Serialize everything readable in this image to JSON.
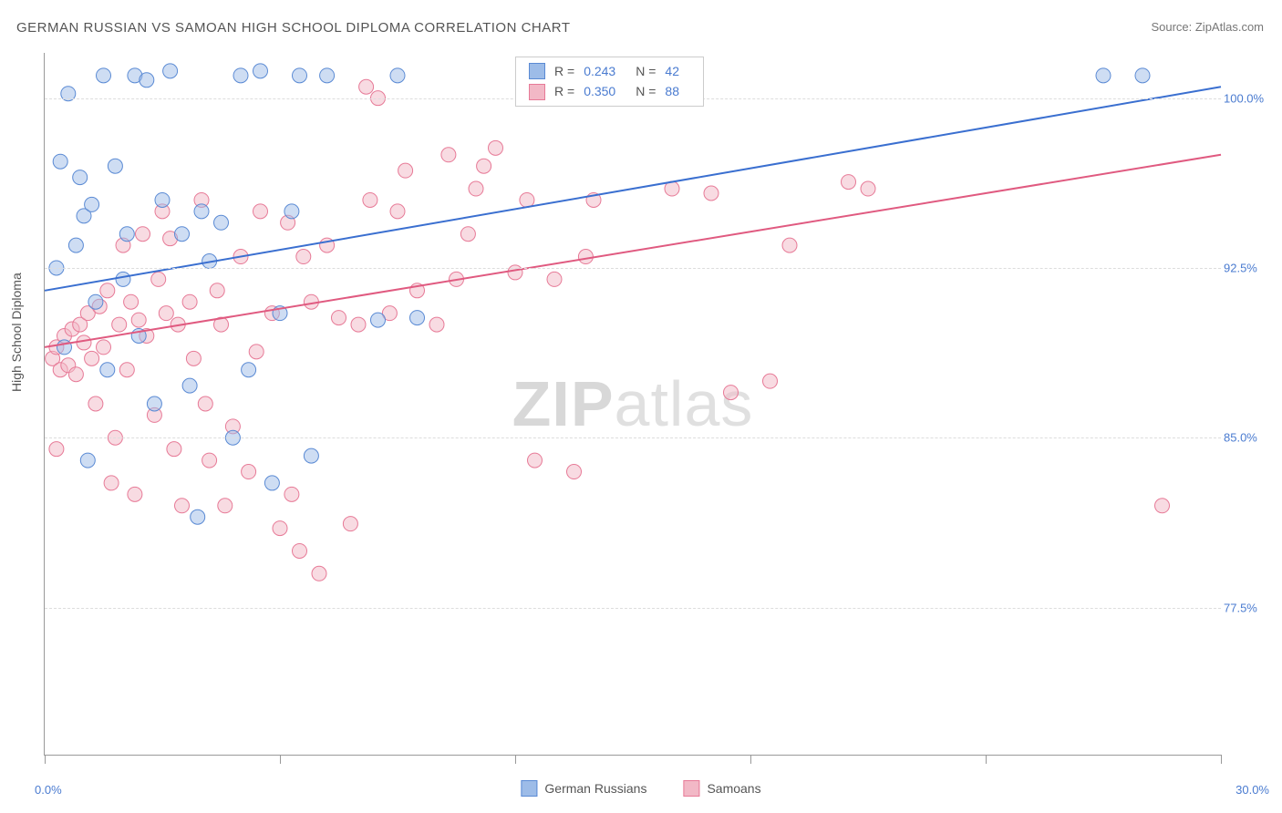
{
  "title": "GERMAN RUSSIAN VS SAMOAN HIGH SCHOOL DIPLOMA CORRELATION CHART",
  "source": "Source: ZipAtlas.com",
  "ylabel": "High School Diploma",
  "watermark_bold": "ZIP",
  "watermark_light": "atlas",
  "chart": {
    "type": "scatter",
    "background_color": "#ffffff",
    "grid_color": "#dddddd",
    "axis_color": "#999999",
    "text_color": "#555555",
    "value_color": "#4a7bd0",
    "xlim": [
      0.0,
      30.0
    ],
    "ylim": [
      71.0,
      102.0
    ],
    "yticks": [
      77.5,
      85.0,
      92.5,
      100.0
    ],
    "ytick_labels": [
      "77.5%",
      "85.0%",
      "92.5%",
      "100.0%"
    ],
    "xaxis_left_label": "0.0%",
    "xaxis_right_label": "30.0%",
    "xtick_positions": [
      0,
      6,
      12,
      18,
      24,
      30
    ],
    "marker_radius": 8,
    "marker_opacity": 0.5,
    "line_width": 2,
    "series": [
      {
        "name": "German Russians",
        "label": "German Russians",
        "fill_color": "#9dbce8",
        "stroke_color": "#5a8ad4",
        "line_color": "#3a6fd0",
        "R": "0.243",
        "N": "42",
        "trend": {
          "x1": 0.0,
          "y1": 91.5,
          "x2": 30.0,
          "y2": 100.5
        },
        "points": [
          [
            0.3,
            92.5
          ],
          [
            0.4,
            97.2
          ],
          [
            0.5,
            89.0
          ],
          [
            0.6,
            100.2
          ],
          [
            0.8,
            93.5
          ],
          [
            1.0,
            94.8
          ],
          [
            1.2,
            95.3
          ],
          [
            1.3,
            91.0
          ],
          [
            1.5,
            101.0
          ],
          [
            1.6,
            88.0
          ],
          [
            1.8,
            97.0
          ],
          [
            2.0,
            92.0
          ],
          [
            2.1,
            94.0
          ],
          [
            2.3,
            101.0
          ],
          [
            2.4,
            89.5
          ],
          [
            2.6,
            100.8
          ],
          [
            2.8,
            86.5
          ],
          [
            3.0,
            95.5
          ],
          [
            3.2,
            101.2
          ],
          [
            3.5,
            94.0
          ],
          [
            3.7,
            87.3
          ],
          [
            4.0,
            95.0
          ],
          [
            4.2,
            92.8
          ],
          [
            4.5,
            94.5
          ],
          [
            4.8,
            85.0
          ],
          [
            5.0,
            101.0
          ],
          [
            5.2,
            88.0
          ],
          [
            5.5,
            101.2
          ],
          [
            5.8,
            83.0
          ],
          [
            6.0,
            90.5
          ],
          [
            6.3,
            95.0
          ],
          [
            6.5,
            101.0
          ],
          [
            6.8,
            84.2
          ],
          [
            7.2,
            101.0
          ],
          [
            8.5,
            90.2
          ],
          [
            9.0,
            101.0
          ],
          [
            9.5,
            90.3
          ],
          [
            27.0,
            101.0
          ],
          [
            28.0,
            101.0
          ],
          [
            3.9,
            81.5
          ],
          [
            1.1,
            84.0
          ],
          [
            0.9,
            96.5
          ]
        ]
      },
      {
        "name": "Samoans",
        "label": "Samoans",
        "fill_color": "#f2b8c6",
        "stroke_color": "#e77a97",
        "line_color": "#e05a80",
        "R": "0.350",
        "N": "88",
        "trend": {
          "x1": 0.0,
          "y1": 89.0,
          "x2": 30.0,
          "y2": 97.5
        },
        "points": [
          [
            0.2,
            88.5
          ],
          [
            0.3,
            89.0
          ],
          [
            0.4,
            88.0
          ],
          [
            0.5,
            89.5
          ],
          [
            0.6,
            88.2
          ],
          [
            0.7,
            89.8
          ],
          [
            0.8,
            87.8
          ],
          [
            0.9,
            90.0
          ],
          [
            1.0,
            89.2
          ],
          [
            1.1,
            90.5
          ],
          [
            1.2,
            88.5
          ],
          [
            1.3,
            86.5
          ],
          [
            1.4,
            90.8
          ],
          [
            1.5,
            89.0
          ],
          [
            1.6,
            91.5
          ],
          [
            1.8,
            85.0
          ],
          [
            1.9,
            90.0
          ],
          [
            2.0,
            93.5
          ],
          [
            2.1,
            88.0
          ],
          [
            2.2,
            91.0
          ],
          [
            2.4,
            90.2
          ],
          [
            2.5,
            94.0
          ],
          [
            2.6,
            89.5
          ],
          [
            2.8,
            86.0
          ],
          [
            3.0,
            95.0
          ],
          [
            3.1,
            90.5
          ],
          [
            3.2,
            93.8
          ],
          [
            3.4,
            90.0
          ],
          [
            3.5,
            82.0
          ],
          [
            3.7,
            91.0
          ],
          [
            3.8,
            88.5
          ],
          [
            4.0,
            95.5
          ],
          [
            4.2,
            84.0
          ],
          [
            4.4,
            91.5
          ],
          [
            4.5,
            90.0
          ],
          [
            4.8,
            85.5
          ],
          [
            5.0,
            93.0
          ],
          [
            5.2,
            83.5
          ],
          [
            5.5,
            95.0
          ],
          [
            5.8,
            90.5
          ],
          [
            6.0,
            81.0
          ],
          [
            6.2,
            94.5
          ],
          [
            6.5,
            80.0
          ],
          [
            6.8,
            91.0
          ],
          [
            7.0,
            79.0
          ],
          [
            7.2,
            93.5
          ],
          [
            7.5,
            90.3
          ],
          [
            8.0,
            90.0
          ],
          [
            8.3,
            95.5
          ],
          [
            8.5,
            100.0
          ],
          [
            8.8,
            90.5
          ],
          [
            9.0,
            95.0
          ],
          [
            9.5,
            91.5
          ],
          [
            10.0,
            90.0
          ],
          [
            10.3,
            97.5
          ],
          [
            10.5,
            92.0
          ],
          [
            11.0,
            96.0
          ],
          [
            11.5,
            97.8
          ],
          [
            12.0,
            92.3
          ],
          [
            12.5,
            84.0
          ],
          [
            13.0,
            92.0
          ],
          [
            13.5,
            83.5
          ],
          [
            14.0,
            95.5
          ],
          [
            16.0,
            96.0
          ],
          [
            17.0,
            95.8
          ],
          [
            17.5,
            87.0
          ],
          [
            18.5,
            87.5
          ],
          [
            19.0,
            93.5
          ],
          [
            20.5,
            96.3
          ],
          [
            21.0,
            96.0
          ],
          [
            28.5,
            82.0
          ],
          [
            6.3,
            82.5
          ],
          [
            7.8,
            81.2
          ],
          [
            4.6,
            82.0
          ],
          [
            3.3,
            84.5
          ],
          [
            2.3,
            82.5
          ],
          [
            1.7,
            83.0
          ],
          [
            0.3,
            84.5
          ],
          [
            5.4,
            88.8
          ],
          [
            9.2,
            96.8
          ],
          [
            10.8,
            94.0
          ],
          [
            12.3,
            95.5
          ],
          [
            8.2,
            100.5
          ],
          [
            6.6,
            93.0
          ],
          [
            11.2,
            97.0
          ],
          [
            4.1,
            86.5
          ],
          [
            2.9,
            92.0
          ],
          [
            13.8,
            93.0
          ]
        ]
      }
    ]
  },
  "stats_box": {
    "R_label": "R =",
    "N_label": "N ="
  },
  "legend": {
    "german_label": "German Russians",
    "samoan_label": "Samoans"
  }
}
